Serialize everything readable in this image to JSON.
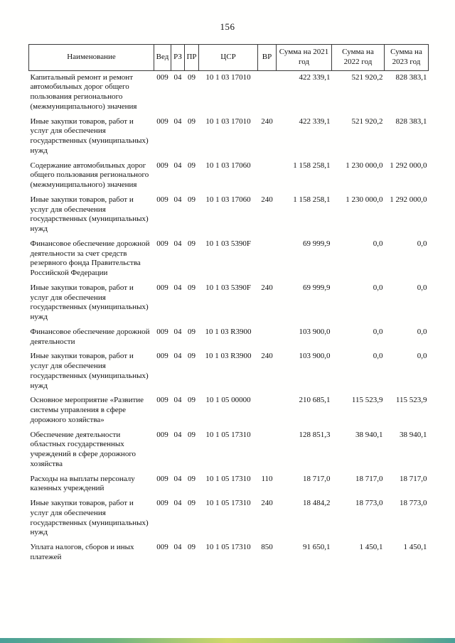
{
  "page": {
    "number": "156"
  },
  "table": {
    "columns": [
      "Наименование",
      "Вед",
      "РЗ",
      "ПР",
      "ЦСР",
      "ВР",
      "Сумма на 2021 год",
      "Сумма на 2022 год",
      "Сумма на 2023 год"
    ],
    "rows": [
      [
        "Капитальный ремонт и ремонт автомобильных дорог общего пользования регионального (межмуниципального) значения",
        "009",
        "04",
        "09",
        "10 1 03 17010",
        "",
        "422 339,1",
        "521 920,2",
        "828 383,1"
      ],
      [
        "Иные закупки товаров, работ и услуг для обеспечения государственных (муниципальных) нужд",
        "009",
        "04",
        "09",
        "10 1 03 17010",
        "240",
        "422 339,1",
        "521 920,2",
        "828 383,1"
      ],
      [
        "Содержание автомобильных дорог общего пользования регионального (межмуниципального) значения",
        "009",
        "04",
        "09",
        "10 1 03 17060",
        "",
        "1 158 258,1",
        "1 230 000,0",
        "1 292 000,0"
      ],
      [
        "Иные закупки товаров, работ и услуг для обеспечения государственных (муниципальных) нужд",
        "009",
        "04",
        "09",
        "10 1 03 17060",
        "240",
        "1 158 258,1",
        "1 230 000,0",
        "1 292 000,0"
      ],
      [
        "Финансовое обеспечение дорожной деятельности за счет средств резервного фонда Правительства Российской Федерации",
        "009",
        "04",
        "09",
        "10 1 03 5390F",
        "",
        "69 999,9",
        "0,0",
        "0,0"
      ],
      [
        "Иные закупки товаров, работ и услуг для обеспечения государственных (муниципальных) нужд",
        "009",
        "04",
        "09",
        "10 1 03 5390F",
        "240",
        "69 999,9",
        "0,0",
        "0,0"
      ],
      [
        "Финансовое обеспечение дорожной деятельности",
        "009",
        "04",
        "09",
        "10 1 03 R3900",
        "",
        "103 900,0",
        "0,0",
        "0,0"
      ],
      [
        "Иные закупки товаров, работ и услуг для обеспечения государственных (муниципальных) нужд",
        "009",
        "04",
        "09",
        "10 1 03 R3900",
        "240",
        "103 900,0",
        "0,0",
        "0,0"
      ],
      [
        "Основное мероприятие «Развитие системы управления в сфере дорожного хозяйства»",
        "009",
        "04",
        "09",
        "10 1 05 00000",
        "",
        "210 685,1",
        "115 523,9",
        "115 523,9"
      ],
      [
        "Обеспечение деятельности областных государственных учреждений в сфере дорожного хозяйства",
        "009",
        "04",
        "09",
        "10 1 05 17310",
        "",
        "128 851,3",
        "38 940,1",
        "38 940,1"
      ],
      [
        "Расходы на выплаты персоналу казенных учреждений",
        "009",
        "04",
        "09",
        "10 1 05 17310",
        "110",
        "18 717,0",
        "18 717,0",
        "18 717,0"
      ],
      [
        "Иные закупки товаров, работ и услуг для обеспечения государственных (муниципальных) нужд",
        "009",
        "04",
        "09",
        "10 1 05 17310",
        "240",
        "18 484,2",
        "18 773,0",
        "18 773,0"
      ],
      [
        "Уплата налогов, сборов и иных платежей",
        "009",
        "04",
        "09",
        "10 1 05 17310",
        "850",
        "91 650,1",
        "1 450,1",
        "1 450,1"
      ]
    ]
  },
  "artifacts": {
    "bottom_strip_colors": [
      "#2a8f86",
      "#57a86b",
      "#c9d14f",
      "#8fbf5a",
      "#2a8f86"
    ]
  }
}
